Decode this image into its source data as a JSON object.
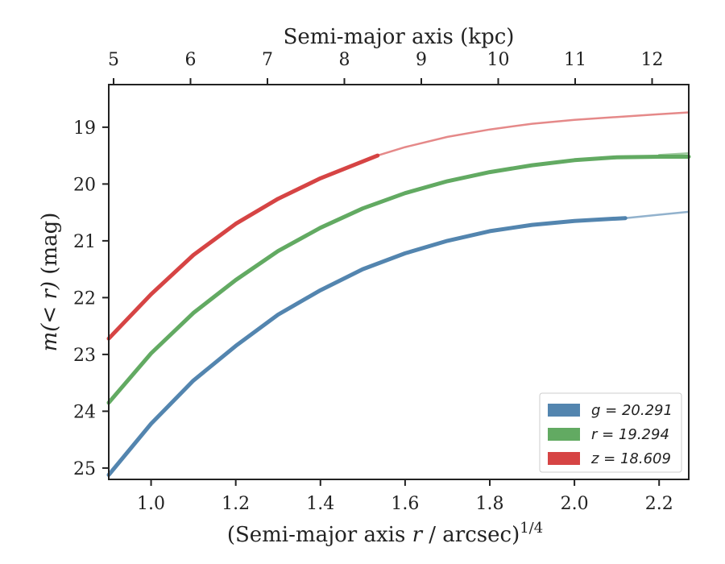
{
  "chart_data": {
    "type": "line",
    "xlabel_pre": "(Semi-major axis ",
    "xlabel_var": "r",
    "xlabel_post": " / arcsec)",
    "xlabel_sup": "1/4",
    "top_xlabel": "Semi-major axis (kpc)",
    "ylabel_var": "m(< r)",
    "ylabel_unit": " (mag)",
    "xlim": [
      0.9,
      2.27
    ],
    "ylim": [
      25.2,
      18.25
    ],
    "y_inverted": true,
    "x_ticks": [
      "1.0",
      "1.2",
      "1.4",
      "1.6",
      "1.8",
      "2.0",
      "2.2"
    ],
    "y_ticks": [
      "19",
      "20",
      "21",
      "22",
      "23",
      "24",
      "25"
    ],
    "top_ticks": [
      "5",
      "6",
      "7",
      "8",
      "9",
      "10",
      "11",
      "12"
    ],
    "legend_position": "lower-right",
    "series": [
      {
        "name": "g = 20.291",
        "color": "#4a7eab",
        "x": [
          0.9,
          1.0,
          1.1,
          1.2,
          1.3,
          1.4,
          1.5,
          1.6,
          1.7,
          1.8,
          1.9,
          2.0,
          2.12
        ],
        "y": [
          25.12,
          24.22,
          23.46,
          22.85,
          22.3,
          21.87,
          21.5,
          21.22,
          21.0,
          20.83,
          20.72,
          20.65,
          20.6
        ],
        "extrap_x": [
          2.12,
          2.2,
          2.27
        ],
        "extrap_y": [
          20.6,
          20.54,
          20.49
        ]
      },
      {
        "name": "r = 19.294",
        "color": "#5aa55a",
        "x": [
          0.9,
          1.0,
          1.1,
          1.2,
          1.3,
          1.4,
          1.5,
          1.6,
          1.7,
          1.8,
          1.9,
          2.0,
          2.1,
          2.2,
          2.27
        ],
        "y": [
          23.85,
          22.98,
          22.27,
          21.69,
          21.18,
          20.77,
          20.43,
          20.16,
          19.95,
          19.79,
          19.67,
          19.58,
          19.53,
          19.52,
          19.52
        ],
        "extrap_x": [
          2.2,
          2.27
        ],
        "extrap_y": [
          19.49,
          19.46
        ]
      },
      {
        "name": "z = 18.609",
        "color": "#d43a3a",
        "x": [
          0.9,
          1.0,
          1.1,
          1.2,
          1.3,
          1.4,
          1.535
        ],
        "y": [
          22.72,
          21.94,
          21.25,
          20.7,
          20.26,
          19.9,
          19.5
        ],
        "extrap_x": [
          1.535,
          1.6,
          1.7,
          1.8,
          1.9,
          2.0,
          2.1,
          2.2,
          2.27
        ],
        "extrap_y": [
          19.5,
          19.35,
          19.17,
          19.04,
          18.94,
          18.87,
          18.82,
          18.77,
          18.74
        ]
      }
    ]
  }
}
